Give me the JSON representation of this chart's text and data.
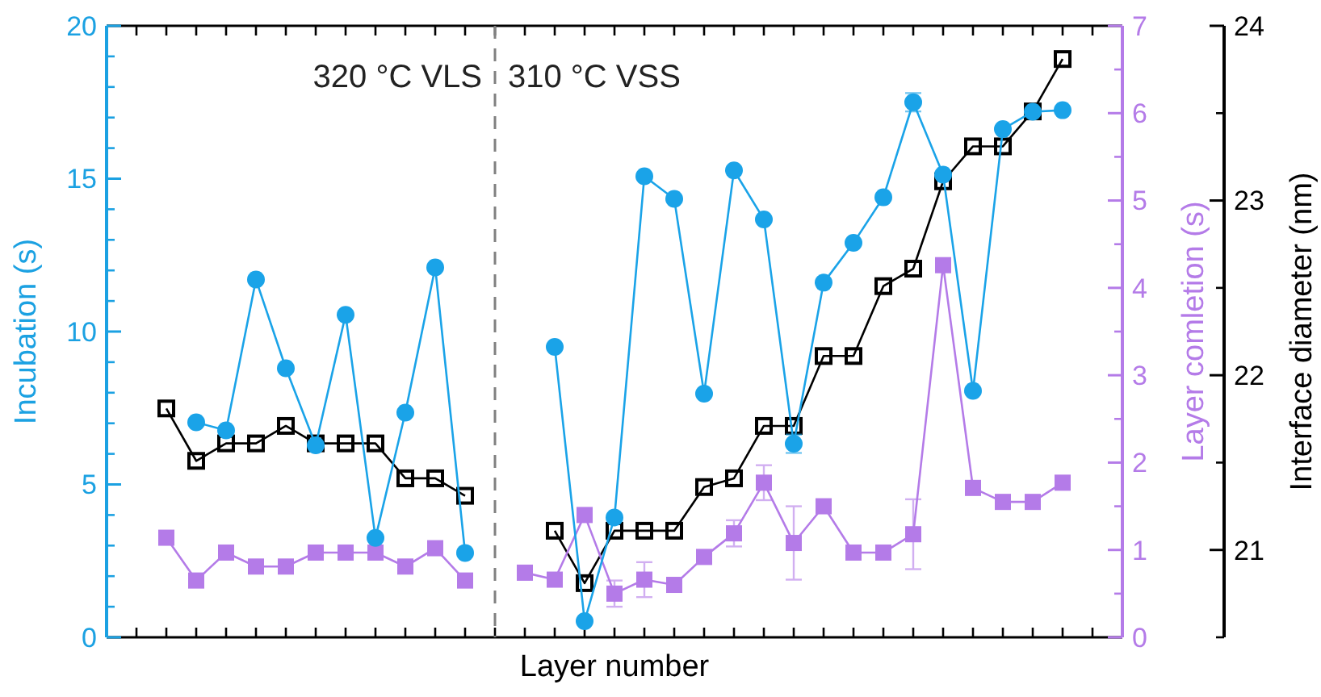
{
  "chart_data": {
    "type": "line",
    "xlabel": "Layer number",
    "ylabel": "Incubation (s)",
    "y2label": "Layer comletion (s)",
    "y3label": "Interface diameter (nm)",
    "annotations": [
      "320 °C VLS",
      "310 °C VSS"
    ],
    "categories": [
      null,
      null,
      null,
      null,
      null,
      null,
      null,
      null,
      null,
      null,
      null,
      null,
      null,
      null,
      null,
      null,
      null,
      null,
      null,
      null,
      null,
      null,
      null,
      null,
      null,
      null,
      null,
      null,
      null,
      null,
      null,
      null,
      null
    ],
    "ylim": [
      0,
      20
    ],
    "yticks": [
      0,
      5,
      10,
      15,
      20
    ],
    "y2lim": [
      0,
      7
    ],
    "y2ticks": [
      0,
      1,
      2,
      3,
      4,
      5,
      6,
      7
    ],
    "y3lim": [
      20.5,
      24
    ],
    "y3ticks": [
      21,
      22,
      23,
      24
    ],
    "tick_labels": "y",
    "line_style": "solid",
    "series": [
      {
        "color": "#000000",
        "axis": "y3",
        "marker": "square",
        "values": [
          null,
          21.81,
          21.51,
          21.61,
          21.61,
          21.71,
          21.61,
          21.61,
          21.61,
          21.41,
          21.41,
          21.31,
          null,
          null,
          null,
          null,
          null,
          null,
          null,
          null,
          null,
          null,
          null,
          null,
          null,
          null,
          null,
          null,
          null,
          null,
          null,
          null,
          null
        ]
      },
      {
        "color": "#000000",
        "axis": "y3",
        "marker": "square",
        "values": [
          null,
          null,
          null,
          null,
          null,
          null,
          null,
          null,
          null,
          null,
          null,
          null,
          null,
          null,
          21.11,
          20.81,
          21.11,
          21.11,
          21.11,
          21.36,
          21.41,
          21.71,
          21.71,
          22.11,
          22.11,
          22.51,
          22.61,
          23.11,
          23.31,
          23.31,
          23.51,
          23.81,
          null
        ]
      },
      {
        "color": "#b47be8",
        "axis": "y2",
        "marker": "square",
        "values": [
          null,
          1.14,
          0.65,
          0.97,
          0.81,
          0.81,
          0.97,
          0.97,
          0.97,
          0.81,
          1.02,
          0.65,
          null,
          null,
          null,
          null,
          null,
          null,
          null,
          null,
          null,
          null,
          null,
          null,
          null,
          null,
          null,
          null,
          null,
          null,
          null,
          null,
          null
        ]
      },
      {
        "color": "#b47be8",
        "axis": "y2",
        "marker": "square",
        "values": [
          null,
          null,
          null,
          null,
          null,
          null,
          null,
          null,
          null,
          null,
          null,
          null,
          null,
          0.74,
          0.66,
          1.4,
          0.5,
          0.66,
          0.6,
          0.92,
          1.19,
          1.77,
          1.08,
          1.5,
          0.97,
          0.97,
          1.18,
          4.26,
          1.71,
          1.55,
          1.55,
          1.77,
          null
        ],
        "errors": [
          null,
          null,
          null,
          null,
          null,
          null,
          null,
          null,
          null,
          null,
          null,
          null,
          null,
          0.08,
          null,
          null,
          0.15,
          0.2,
          null,
          null,
          0.15,
          0.2,
          0.42,
          null,
          null,
          null,
          0.4,
          null,
          null,
          null,
          null,
          null,
          null
        ]
      },
      {
        "color": "#1aa3e8",
        "marker": "circle",
        "values": [
          null,
          null,
          7.03,
          6.77,
          11.7,
          8.8,
          6.28,
          10.55,
          3.25,
          7.35,
          12.1,
          2.76,
          null,
          null,
          null,
          null,
          null,
          null,
          null,
          null,
          null,
          null,
          null,
          null,
          null,
          null,
          null,
          null,
          null,
          null,
          null,
          null,
          null
        ]
      },
      {
        "color": "#1aa3e8",
        "marker": "circle",
        "values": [
          null,
          null,
          null,
          null,
          null,
          null,
          null,
          null,
          null,
          null,
          null,
          null,
          null,
          null,
          9.5,
          0.53,
          3.92,
          15.08,
          14.34,
          7.97,
          15.27,
          13.67,
          6.33,
          11.6,
          12.9,
          14.39,
          17.5,
          15.13,
          8.06,
          16.62,
          17.19,
          17.24,
          null
        ],
        "errors": [
          null,
          null,
          null,
          null,
          null,
          null,
          null,
          null,
          null,
          null,
          null,
          null,
          null,
          null,
          null,
          null,
          null,
          null,
          null,
          null,
          null,
          null,
          0.3,
          null,
          null,
          null,
          0.3,
          null,
          null,
          null,
          null,
          null,
          null
        ]
      }
    ]
  }
}
